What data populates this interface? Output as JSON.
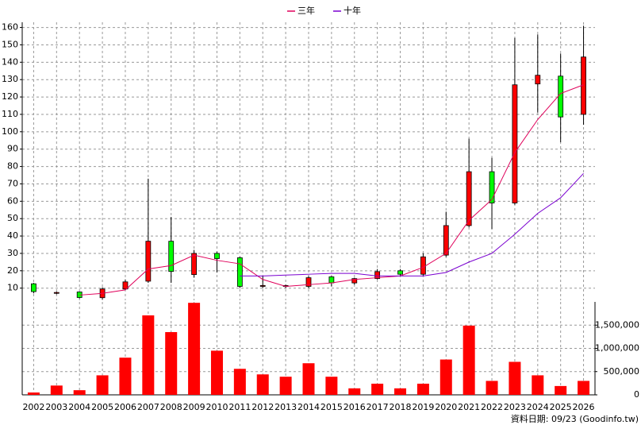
{
  "chart_data": {
    "type": "candlestick",
    "categories": [
      "2002",
      "2003",
      "2004",
      "2005",
      "2006",
      "2007",
      "2008",
      "2009",
      "2010",
      "2011",
      "2012",
      "2013",
      "2014",
      "2015",
      "2016",
      "2017",
      "2018",
      "2019",
      "2020",
      "2021",
      "2022",
      "2023",
      "2024",
      "2025",
      "2026"
    ],
    "open": [
      12.5,
      7,
      7.8,
      4.5,
      9.5,
      14,
      37,
      17.8,
      30,
      27.5,
      11,
      11,
      11,
      16.5,
      13,
      15.5,
      20,
      18,
      29,
      46,
      77,
      59,
      127.5,
      132,
      110
    ],
    "high": [
      13,
      8,
      8,
      10.5,
      15,
      73,
      51,
      32,
      31,
      28,
      17,
      12,
      17,
      17,
      16,
      21,
      21,
      30,
      54,
      96,
      85,
      154,
      156,
      145,
      161
    ],
    "low": [
      7,
      6.5,
      4,
      3.5,
      9,
      13,
      13,
      16,
      19,
      10,
      10,
      10,
      10,
      11,
      12,
      15,
      17,
      17,
      28,
      45,
      44,
      58,
      111,
      94,
      104
    ],
    "close": [
      8,
      7.5,
      4.6,
      9.5,
      13.6,
      37,
      19.6,
      30,
      27,
      11,
      11.5,
      11.5,
      16,
      13,
      15.5,
      19.5,
      18,
      28,
      46,
      77,
      59,
      127,
      132.5,
      108.5,
      143
    ],
    "up_color": "#ff0000",
    "down_color": "#00ff00",
    "series": [
      {
        "name": "三年",
        "color": "#e0005a",
        "values": [
          null,
          null,
          6,
          7,
          9,
          21,
          23,
          29,
          26,
          24,
          15,
          11,
          12,
          13,
          15,
          16,
          17,
          22,
          30,
          49,
          61,
          88,
          107,
          122,
          127
        ]
      },
      {
        "name": "十年",
        "color": "#7a00d0",
        "values": [
          null,
          null,
          null,
          null,
          null,
          null,
          null,
          null,
          null,
          17,
          17,
          17.5,
          18,
          18.5,
          18.5,
          17,
          17,
          17,
          19,
          25,
          30,
          41,
          53,
          62,
          76
        ]
      }
    ],
    "ylim": [
      3,
      163
    ],
    "yticks": [
      10,
      20,
      30,
      40,
      50,
      60,
      70,
      80,
      90,
      100,
      110,
      120,
      130,
      140,
      150,
      160
    ],
    "grid": true,
    "volume": {
      "color": "#ff0000",
      "values": [
        50000,
        200000,
        100000,
        420000,
        800000,
        1710000,
        1350000,
        1980000,
        950000,
        560000,
        440000,
        390000,
        680000,
        390000,
        140000,
        240000,
        140000,
        240000,
        760000,
        1490000,
        300000,
        710000,
        420000,
        190000,
        300000
      ],
      "ylim": [
        0,
        2000000
      ],
      "yticks": [
        0,
        {
          "value": 500000,
          "label": "500,000"
        },
        {
          "value": 1000000,
          "label": "1,000,000"
        },
        {
          "value": 1500000,
          "label": "1,500,000"
        }
      ]
    },
    "footnote": "資料日期: 09/23 (Goodinfo.tw)"
  }
}
